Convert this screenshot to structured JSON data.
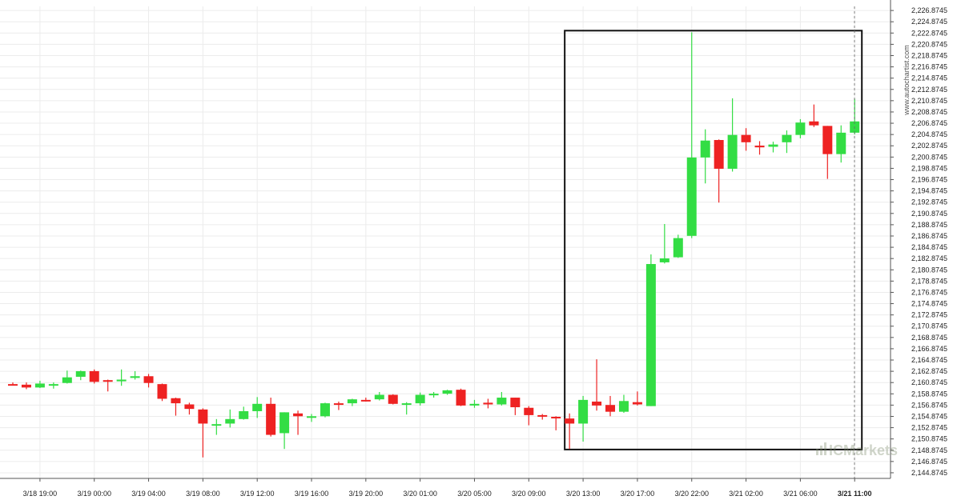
{
  "chart_data": {
    "type": "candlestick",
    "y_ticks": [
      "2,226.8745",
      "2,224.8745",
      "2,222.8745",
      "2,220.8745",
      "2,218.8745",
      "2,216.8745",
      "2,214.8745",
      "2,212.8745",
      "2,210.8745",
      "2,208.8745",
      "2,206.8745",
      "2,204.8745",
      "2,202.8745",
      "2,200.8745",
      "2,198.8745",
      "2,196.8745",
      "2,194.8745",
      "2,192.8745",
      "2,190.8745",
      "2,188.8745",
      "2,186.8745",
      "2,184.8745",
      "2,182.8745",
      "2,180.8745",
      "2,178.8745",
      "2,176.8745",
      "2,174.8745",
      "2,172.8745",
      "2,170.8745",
      "2,168.8745",
      "2,166.8745",
      "2,164.8745",
      "2,162.8745",
      "2,160.8745",
      "2,158.8745",
      "2,156.8745",
      "2,154.8745",
      "2,152.8745",
      "2,150.8745",
      "2,148.8745",
      "2,146.8745",
      "2,144.8745"
    ],
    "ylim": [
      2143.8745,
      2227.6
    ],
    "x_ticks": [
      {
        "label": "3/18 19:00",
        "i": 2
      },
      {
        "label": "3/19 00:00",
        "i": 6
      },
      {
        "label": "3/19 04:00",
        "i": 10
      },
      {
        "label": "3/19 08:00",
        "i": 14
      },
      {
        "label": "3/19 12:00",
        "i": 18
      },
      {
        "label": "3/19 16:00",
        "i": 22
      },
      {
        "label": "3/19 20:00",
        "i": 26
      },
      {
        "label": "3/20 01:00",
        "i": 30
      },
      {
        "label": "3/20 05:00",
        "i": 34
      },
      {
        "label": "3/20 09:00",
        "i": 38
      },
      {
        "label": "3/20 13:00",
        "i": 42
      },
      {
        "label": "3/20 17:00",
        "i": 46
      },
      {
        "label": "3/20 22:00",
        "i": 50
      },
      {
        "label": "3/21 02:00",
        "i": 54
      },
      {
        "label": "3/21 06:00",
        "i": 58
      },
      {
        "label": "3/21 11:00",
        "i": 62,
        "bold": true
      }
    ],
    "candles": [
      {
        "o": 2160.6,
        "h": 2160.9,
        "l": 2160.4,
        "c": 2160.5
      },
      {
        "o": 2160.5,
        "h": 2160.9,
        "l": 2159.7,
        "c": 2160.0
      },
      {
        "o": 2160.0,
        "h": 2161.2,
        "l": 2159.9,
        "c": 2160.7
      },
      {
        "o": 2160.6,
        "h": 2160.9,
        "l": 2159.8,
        "c": 2160.6
      },
      {
        "o": 2160.8,
        "h": 2163.0,
        "l": 2160.7,
        "c": 2161.8
      },
      {
        "o": 2161.9,
        "h": 2163.0,
        "l": 2161.3,
        "c": 2162.9
      },
      {
        "o": 2162.9,
        "h": 2163.2,
        "l": 2160.7,
        "c": 2161.0
      },
      {
        "o": 2161.3,
        "h": 2161.4,
        "l": 2159.3,
        "c": 2161.1
      },
      {
        "o": 2161.1,
        "h": 2163.2,
        "l": 2160.3,
        "c": 2161.4
      },
      {
        "o": 2161.7,
        "h": 2162.9,
        "l": 2161.4,
        "c": 2162.0
      },
      {
        "o": 2162.0,
        "h": 2162.4,
        "l": 2160.0,
        "c": 2160.8
      },
      {
        "o": 2160.6,
        "h": 2160.7,
        "l": 2157.6,
        "c": 2158.0
      },
      {
        "o": 2158.1,
        "h": 2158.2,
        "l": 2155.0,
        "c": 2157.2
      },
      {
        "o": 2157.0,
        "h": 2157.3,
        "l": 2155.2,
        "c": 2156.2
      },
      {
        "o": 2156.1,
        "h": 2156.3,
        "l": 2147.6,
        "c": 2153.6
      },
      {
        "o": 2153.4,
        "h": 2154.4,
        "l": 2151.6,
        "c": 2153.5
      },
      {
        "o": 2153.6,
        "h": 2156.1,
        "l": 2152.9,
        "c": 2154.4
      },
      {
        "o": 2154.4,
        "h": 2156.6,
        "l": 2154.3,
        "c": 2155.8
      },
      {
        "o": 2155.8,
        "h": 2158.3,
        "l": 2154.6,
        "c": 2157.1
      },
      {
        "o": 2157.1,
        "h": 2158.2,
        "l": 2151.3,
        "c": 2151.6
      },
      {
        "o": 2151.9,
        "h": 2155.6,
        "l": 2149.1,
        "c": 2155.6
      },
      {
        "o": 2155.4,
        "h": 2155.9,
        "l": 2151.6,
        "c": 2154.9
      },
      {
        "o": 2154.8,
        "h": 2155.3,
        "l": 2153.9,
        "c": 2154.9
      },
      {
        "o": 2154.9,
        "h": 2157.3,
        "l": 2154.7,
        "c": 2157.2
      },
      {
        "o": 2157.2,
        "h": 2157.5,
        "l": 2156.0,
        "c": 2157.1
      },
      {
        "o": 2157.2,
        "h": 2158.0,
        "l": 2156.7,
        "c": 2157.9
      },
      {
        "o": 2157.8,
        "h": 2158.2,
        "l": 2157.5,
        "c": 2157.6
      },
      {
        "o": 2157.9,
        "h": 2159.2,
        "l": 2157.7,
        "c": 2158.7
      },
      {
        "o": 2158.7,
        "h": 2158.8,
        "l": 2157.0,
        "c": 2157.1
      },
      {
        "o": 2157.2,
        "h": 2157.4,
        "l": 2155.2,
        "c": 2157.2
      },
      {
        "o": 2157.2,
        "h": 2159.1,
        "l": 2156.8,
        "c": 2158.7
      },
      {
        "o": 2158.7,
        "h": 2159.2,
        "l": 2158.2,
        "c": 2158.9
      },
      {
        "o": 2158.9,
        "h": 2159.6,
        "l": 2158.7,
        "c": 2159.5
      },
      {
        "o": 2159.6,
        "h": 2159.8,
        "l": 2156.7,
        "c": 2156.8
      },
      {
        "o": 2156.8,
        "h": 2157.8,
        "l": 2156.4,
        "c": 2157.1
      },
      {
        "o": 2157.3,
        "h": 2158.0,
        "l": 2156.3,
        "c": 2157.0
      },
      {
        "o": 2157.0,
        "h": 2159.2,
        "l": 2156.8,
        "c": 2158.2
      },
      {
        "o": 2158.2,
        "h": 2158.2,
        "l": 2155.1,
        "c": 2156.5
      },
      {
        "o": 2156.4,
        "h": 2156.7,
        "l": 2153.3,
        "c": 2155.1
      },
      {
        "o": 2155.1,
        "h": 2155.3,
        "l": 2154.3,
        "c": 2154.9
      },
      {
        "o": 2154.8,
        "h": 2154.9,
        "l": 2152.4,
        "c": 2154.6
      },
      {
        "o": 2154.5,
        "h": 2155.4,
        "l": 2149.1,
        "c": 2153.6
      },
      {
        "o": 2153.6,
        "h": 2158.5,
        "l": 2150.4,
        "c": 2157.8
      },
      {
        "o": 2157.5,
        "h": 2165.0,
        "l": 2155.9,
        "c": 2156.8
      },
      {
        "o": 2156.9,
        "h": 2158.5,
        "l": 2154.9,
        "c": 2155.7
      },
      {
        "o": 2155.7,
        "h": 2158.7,
        "l": 2155.5,
        "c": 2157.6
      },
      {
        "o": 2157.4,
        "h": 2159.3,
        "l": 2156.8,
        "c": 2157.0
      },
      {
        "o": 2156.7,
        "h": 2183.6,
        "l": 2156.7,
        "c": 2181.9
      },
      {
        "o": 2182.2,
        "h": 2189.0,
        "l": 2182.0,
        "c": 2182.9
      },
      {
        "o": 2183.1,
        "h": 2187.1,
        "l": 2183.0,
        "c": 2186.5
      },
      {
        "o": 2186.9,
        "h": 2223.0,
        "l": 2186.5,
        "c": 2200.8
      },
      {
        "o": 2200.8,
        "h": 2205.8,
        "l": 2196.2,
        "c": 2203.8
      },
      {
        "o": 2203.9,
        "h": 2204.0,
        "l": 2192.8,
        "c": 2198.8
      },
      {
        "o": 2198.8,
        "h": 2211.3,
        "l": 2198.3,
        "c": 2204.8
      },
      {
        "o": 2204.8,
        "h": 2206.0,
        "l": 2202.0,
        "c": 2203.5
      },
      {
        "o": 2202.9,
        "h": 2203.7,
        "l": 2201.3,
        "c": 2202.6
      },
      {
        "o": 2202.7,
        "h": 2203.6,
        "l": 2201.7,
        "c": 2203.1
      },
      {
        "o": 2203.5,
        "h": 2205.6,
        "l": 2201.6,
        "c": 2204.8
      },
      {
        "o": 2204.8,
        "h": 2207.6,
        "l": 2204.2,
        "c": 2207.0
      },
      {
        "o": 2207.2,
        "h": 2210.2,
        "l": 2206.2,
        "c": 2206.5
      },
      {
        "o": 2206.4,
        "h": 2206.4,
        "l": 2197.0,
        "c": 2201.4
      },
      {
        "o": 2201.4,
        "h": 2206.5,
        "l": 2199.9,
        "c": 2205.2
      },
      {
        "o": 2205.2,
        "h": 2211.2,
        "l": 2204.9,
        "c": 2207.2
      }
    ],
    "highlight_box": {
      "start_i": 41,
      "end_i": 62,
      "low": 2149.0,
      "high": 2223.3
    },
    "up_color": "#33dd44",
    "down_color": "#ee2222",
    "watermark": "www.autochartist.com",
    "brand": "ICMarkets"
  }
}
